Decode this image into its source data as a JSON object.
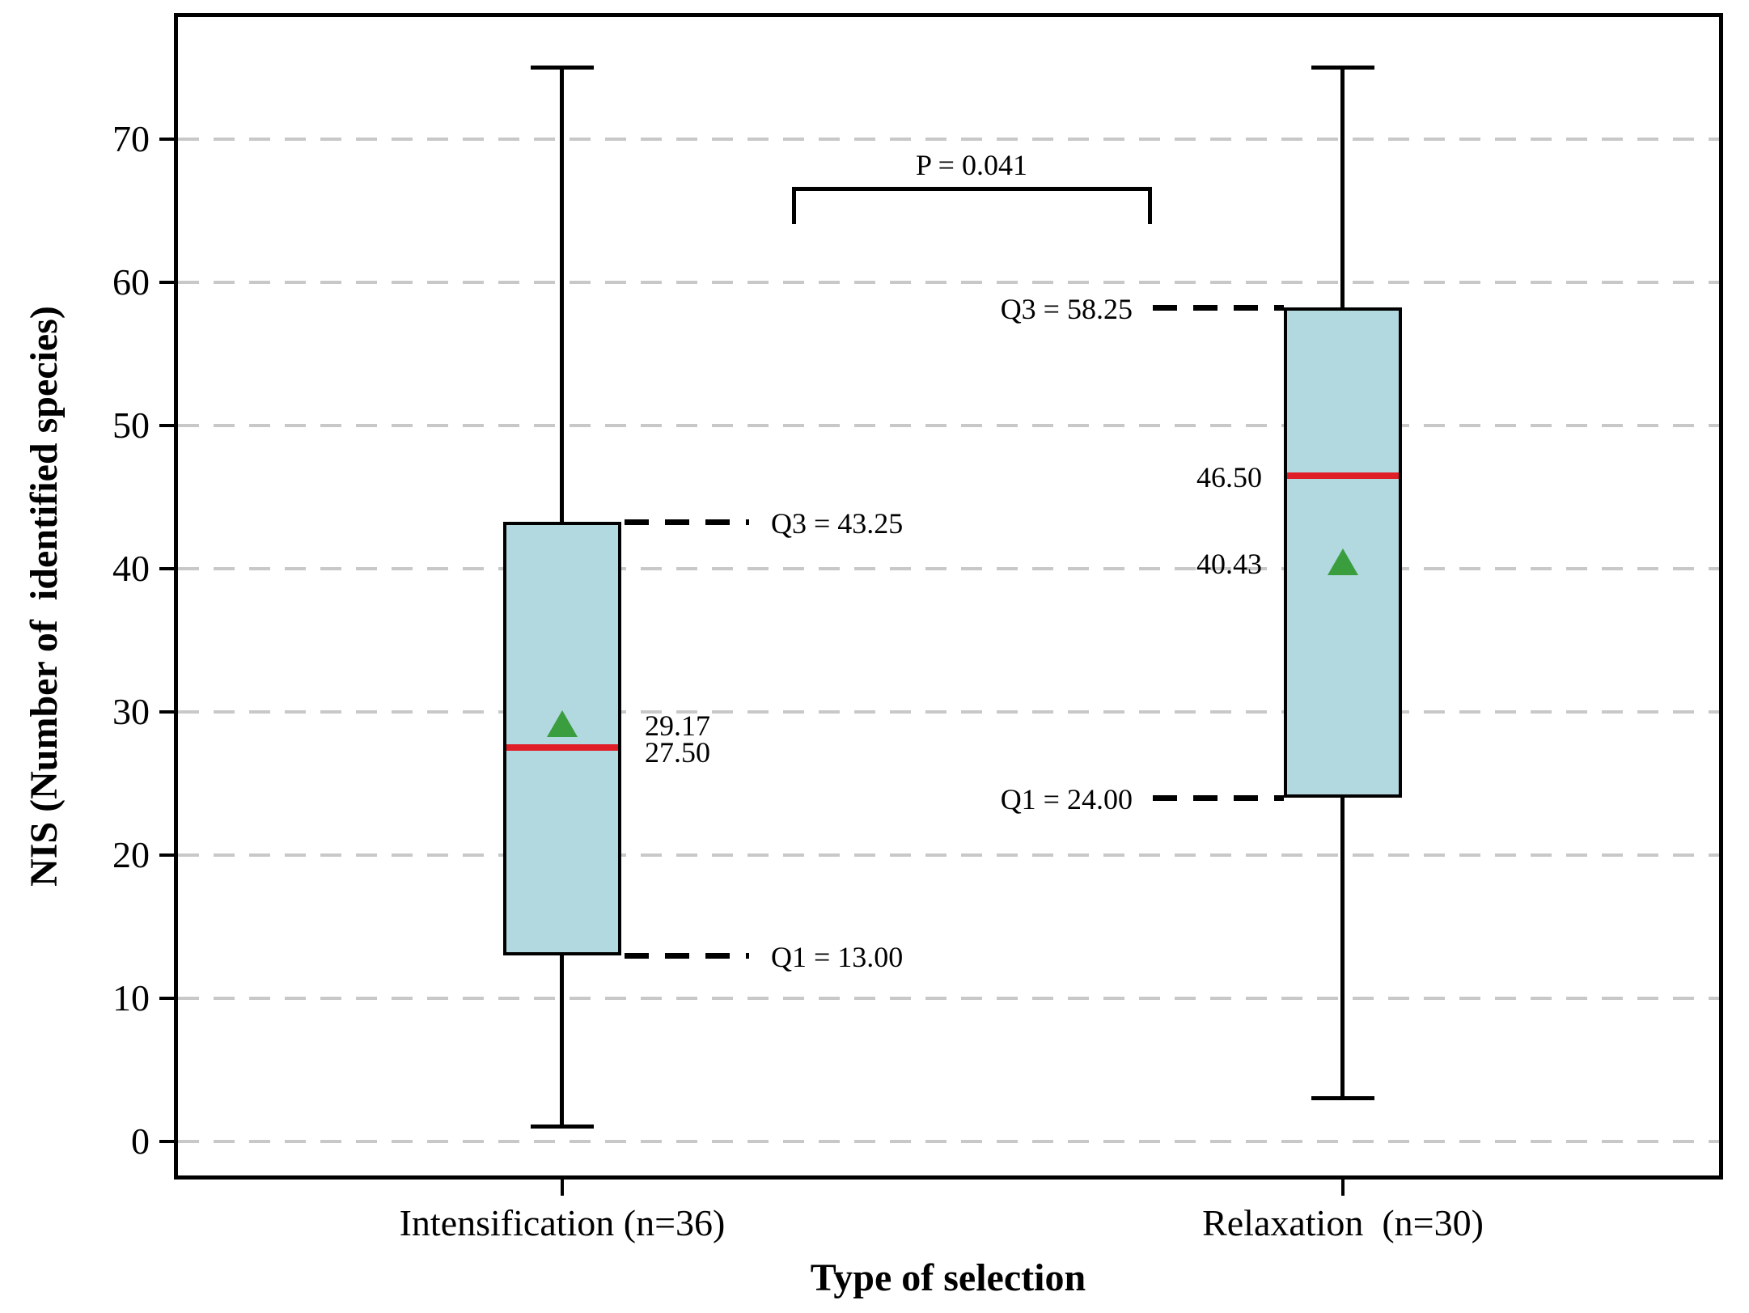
{
  "chart_data": {
    "type": "box",
    "title": "",
    "xlabel": "Type of selection",
    "ylabel": "NIS (Number of  identified species)",
    "yticks": [
      0,
      10,
      20,
      30,
      40,
      50,
      60,
      70
    ],
    "ylim": [
      -2.65,
      78.8
    ],
    "grid": "horizontal-dashed",
    "legend_position": "none",
    "significance": {
      "label": "P = 0.041"
    },
    "groups": [
      {
        "label": "Intensification (n=36)",
        "whisker_low": 1,
        "q1": 13.0,
        "median": 27.5,
        "mean": 29.17,
        "q3": 43.25,
        "whisker_high": 75,
        "annotations": {
          "q3_label": "Q3 = 43.25",
          "q1_label": "Q1 = 13.00",
          "mean_label": "29.17",
          "median_label": "27.50",
          "side": "right"
        }
      },
      {
        "label": "Relaxation  (n=30)",
        "whisker_low": 3,
        "q1": 24.0,
        "median": 46.5,
        "mean": 40.43,
        "q3": 58.25,
        "whisker_high": 75,
        "annotations": {
          "q3_label": "Q3 = 58.25",
          "q1_label": "Q1 = 24.00",
          "mean_label": "40.43",
          "median_label": "46.50",
          "side": "left"
        }
      }
    ],
    "colors": {
      "box_fill": "#b2d8e0",
      "box_edge": "#000000",
      "median": "#e01e28",
      "mean_marker": "#3a9e3e",
      "gridline": "#c8c8c8",
      "annotation": "#000000"
    }
  }
}
